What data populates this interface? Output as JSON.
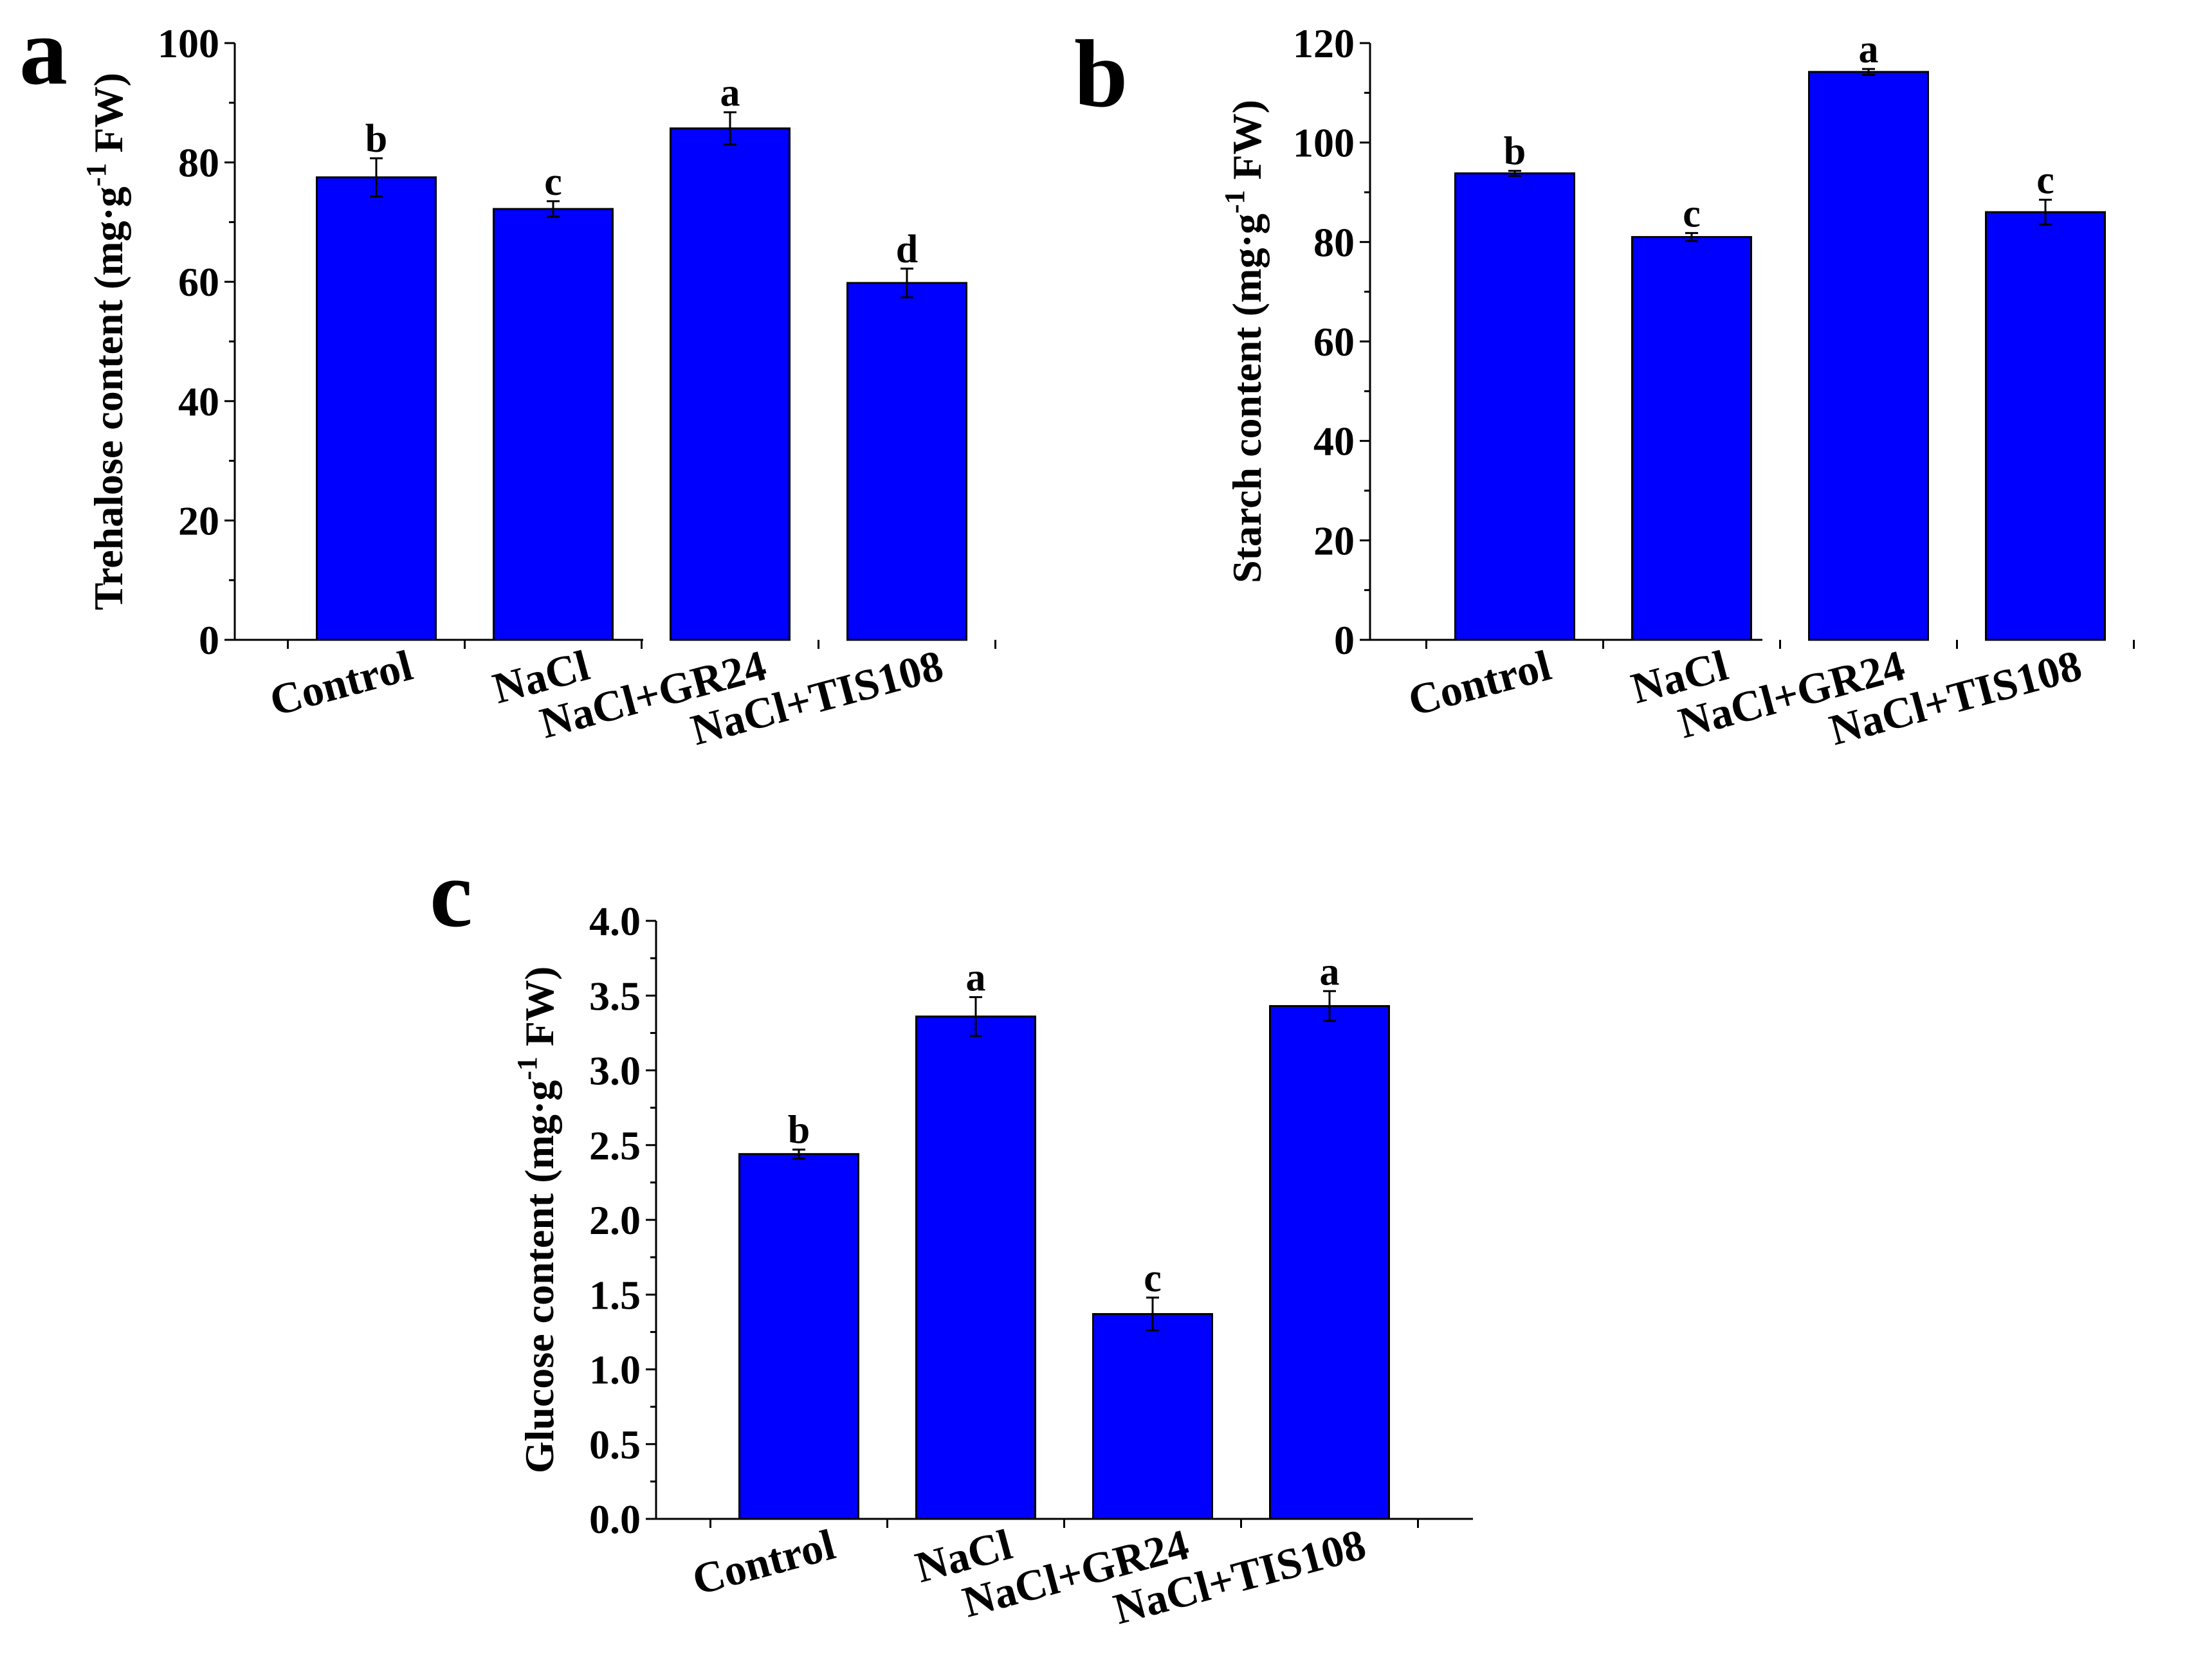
{
  "figure": {
    "bar_color": "#0000ff",
    "panels_caption_letters": [
      "a",
      "b",
      "c"
    ]
  },
  "chart_data": [
    {
      "panel": "a",
      "type": "bar",
      "title": "",
      "ylabel_main": "Trehalose content (mg·g",
      "ylabel_sup": "-1",
      "ylabel_tail": " FW)",
      "xlabel": "",
      "categories": [
        "Control",
        "NaCl",
        "NaCl+GR24",
        "NaCl+TIS108"
      ],
      "values": [
        77.5,
        72.2,
        85.7,
        59.8
      ],
      "errors": [
        3.2,
        1.3,
        2.7,
        2.4
      ],
      "significance": [
        "b",
        "c",
        "a",
        "d"
      ],
      "ylim": [
        0,
        100
      ],
      "yticks": [
        0,
        20,
        40,
        60,
        80,
        100
      ],
      "ytick_labels": [
        "0",
        "20",
        "40",
        "60",
        "80",
        "100"
      ]
    },
    {
      "panel": "b",
      "type": "bar",
      "title": "",
      "ylabel_main": "Starch content (mg·g",
      "ylabel_sup": "-1",
      "ylabel_tail": " FW)",
      "xlabel": "",
      "categories": [
        "Control",
        "NaCl",
        "NaCl+GR24",
        "NaCl+TIS108"
      ],
      "values": [
        93.8,
        81.0,
        114.2,
        86.0
      ],
      "errors": [
        0.5,
        0.8,
        0.6,
        2.5
      ],
      "significance": [
        "b",
        "c",
        "a",
        "c"
      ],
      "ylim": [
        0,
        120
      ],
      "yticks": [
        0,
        20,
        40,
        60,
        80,
        100,
        120
      ],
      "ytick_labels": [
        "0",
        "20",
        "40",
        "60",
        "80",
        "100",
        "120"
      ]
    },
    {
      "panel": "c",
      "type": "bar",
      "title": "",
      "ylabel_main": "Glucose content (mg·g",
      "ylabel_sup": "-1",
      "ylabel_tail": " FW)",
      "xlabel": "",
      "categories": [
        "Control",
        "NaCl",
        "NaCl+GR24",
        "NaCl+TIS108"
      ],
      "values": [
        2.44,
        3.36,
        1.37,
        3.43
      ],
      "errors": [
        0.03,
        0.13,
        0.11,
        0.1
      ],
      "significance": [
        "b",
        "a",
        "c",
        "a"
      ],
      "ylim": [
        0,
        4.0
      ],
      "yticks": [
        0,
        0.5,
        1.0,
        1.5,
        2.0,
        2.5,
        3.0,
        3.5,
        4.0
      ],
      "ytick_labels": [
        "0.0",
        "0.5",
        "1.0",
        "1.5",
        "2.0",
        "2.5",
        "3.0",
        "3.5",
        "4.0"
      ]
    }
  ]
}
